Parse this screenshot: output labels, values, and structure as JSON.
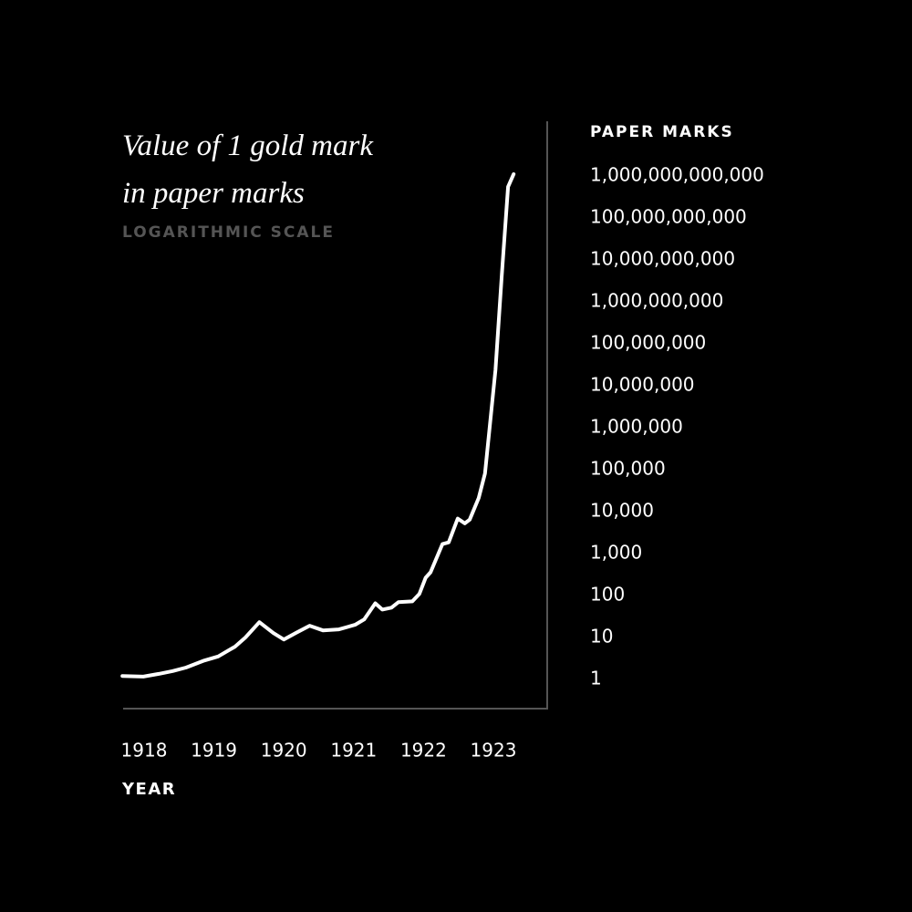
{
  "chart_data": {
    "type": "line",
    "title": "Value of 1 gold mark in paper marks",
    "subtitle": "LOGARITHMIC SCALE",
    "y_label": "PAPER MARKS",
    "x_label": "YEAR",
    "yscale": "log",
    "color": "#ffffff",
    "x": [
      1917.69,
      1917.99,
      1918.21,
      1918.41,
      1918.6,
      1918.86,
      1919.06,
      1919.3,
      1919.45,
      1919.65,
      1919.85,
      1920.0,
      1920.17,
      1920.37,
      1920.56,
      1920.79,
      1921.02,
      1921.15,
      1921.31,
      1921.41,
      1921.54,
      1921.64,
      1921.84,
      1921.94,
      1922.03,
      1922.1,
      1922.27,
      1922.36,
      1922.49,
      1922.59,
      1922.66,
      1922.79,
      1922.88,
      1923.03,
      1923.12,
      1923.21,
      1923.29
    ],
    "values": [
      1.2,
      1.16,
      1.35,
      1.57,
      1.9,
      2.8,
      3.5,
      6.0,
      9.9,
      23,
      12.7,
      8.9,
      12.7,
      18.9,
      14.7,
      15.5,
      19.9,
      26.7,
      65,
      46,
      51,
      69,
      72,
      108,
      264,
      356,
      1670,
      1840,
      6800,
      5200,
      6400,
      21000,
      81000,
      24000000,
      4300000000,
      550000000000,
      1100000000000
    ],
    "xlim": [
      1917.7,
      1923.77
    ],
    "xticks": [
      1918,
      1919,
      1920,
      1921,
      1922,
      1923
    ],
    "ylim": [
      0.2,
      20000000000000
    ],
    "yticks": [
      1,
      10,
      100,
      {
        "value": 1000,
        "label": "1,000"
      },
      {
        "value": 10000,
        "label": "10,000"
      },
      {
        "value": 100000,
        "label": "100,000"
      },
      {
        "value": 1000000,
        "label": "1,000,000"
      },
      {
        "value": 10000000,
        "label": "10,000,000"
      },
      {
        "value": 100000000,
        "label": "100,000,000"
      },
      {
        "value": 1000000000,
        "label": "1,000,000,000"
      },
      {
        "value": 10000000000,
        "label": "10,000,000,000"
      },
      {
        "value": 100000000000,
        "label": "100,000,000,000"
      },
      {
        "value": 1000000000000,
        "label": "1,000,000,000,000"
      }
    ]
  }
}
